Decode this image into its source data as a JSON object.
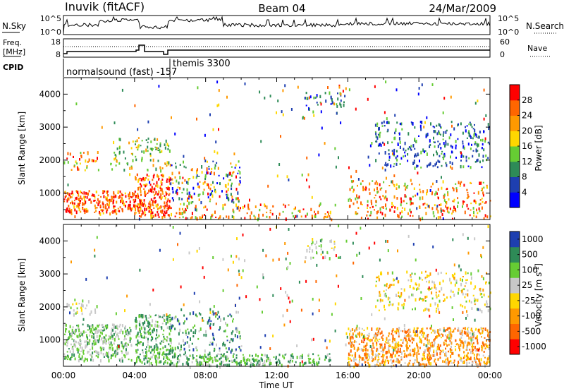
{
  "header": {
    "title": "Inuvik (fitACF)",
    "beam": "Beam 04",
    "date": "24/Mar/2009"
  },
  "top_panels": {
    "nsky_label": "N.Sky",
    "nsky_ticks": [
      "10^5",
      "10^0"
    ],
    "nsearch_label": "N.Search",
    "nsearch_ticks": [
      "10^5",
      "10^0"
    ],
    "freq_label_1": "Freq.",
    "freq_label_2": "[MHz]",
    "freq_ticks": [
      "18",
      "8"
    ],
    "nave_label": "Nave",
    "nave_ticks": [
      "60",
      "0"
    ],
    "cpid_label": "CPID",
    "cpid_entries": [
      {
        "text": "normalsound (fast) -157",
        "start_hour": 0
      },
      {
        "text": "themis 3300",
        "start_hour": 6
      }
    ]
  },
  "chart_data": [
    {
      "type": "heatmap",
      "panel": "power",
      "ylabel": "Slant Range [km]",
      "xlabel": "",
      "x_range_hours": [
        0,
        24
      ],
      "ylim": [
        200,
        4500
      ],
      "yticks": [
        1000,
        2000,
        3000,
        4000
      ],
      "colorbar": {
        "label": "Power [dB]",
        "ticks": [
          "4",
          "8",
          "12",
          "16",
          "20",
          "24",
          "28"
        ],
        "colors": [
          "#0000ff",
          "#1e3fb0",
          "#2e8b57",
          "#66cc33",
          "#ffd700",
          "#ff9900",
          "#ff6600",
          "#ff0000"
        ]
      },
      "scatter_regions": [
        {
          "start_hour": 0.0,
          "end_hour": 4.1,
          "range_km": [
            400,
            1100
          ],
          "dominant": "red"
        },
        {
          "start_hour": 0.0,
          "end_hour": 2.0,
          "range_km": [
            1700,
            2300
          ],
          "dominant": "red-orange"
        },
        {
          "start_hour": 2.5,
          "end_hour": 6.0,
          "range_km": [
            1700,
            2700
          ],
          "dominant": "green-yellow"
        },
        {
          "start_hour": 4.0,
          "end_hour": 6.0,
          "range_km": [
            300,
            1600
          ],
          "dominant": "red"
        },
        {
          "start_hour": 6.0,
          "end_hour": 10.0,
          "range_km": [
            700,
            2000
          ],
          "dominant": "mixed"
        },
        {
          "start_hour": 6.0,
          "end_hour": 15.3,
          "range_km": [
            250,
            700
          ],
          "dominant": "red-orange"
        },
        {
          "start_hour": 13.5,
          "end_hour": 15.8,
          "range_km": [
            3500,
            4100
          ],
          "dominant": "blue-green"
        },
        {
          "start_hour": 16.0,
          "end_hour": 24.0,
          "range_km": [
            250,
            1400
          ],
          "dominant": "red-orange"
        },
        {
          "start_hour": 17.5,
          "end_hour": 24.0,
          "range_km": [
            1800,
            3200
          ],
          "dominant": "green-blue"
        }
      ]
    },
    {
      "type": "heatmap",
      "panel": "velocity",
      "ylabel": "Slant Range [km]",
      "xlabel": "Time UT",
      "x_range_hours": [
        0,
        24
      ],
      "ylim": [
        200,
        4500
      ],
      "yticks": [
        1000,
        2000,
        3000,
        4000
      ],
      "xtick_labels": [
        "00:00",
        "04:00",
        "08:00",
        "12:00",
        "16:00",
        "20:00",
        "00:00"
      ],
      "colorbar": {
        "label": "Velocity [m s-1]",
        "ticks": [
          "1000",
          "500",
          "100",
          "25",
          "-25",
          "-100",
          "-500",
          "-1000"
        ],
        "colors": [
          "#1e3fb0",
          "#2e8b57",
          "#66cc33",
          "#c8c8c8",
          "#ffd700",
          "#ff9900",
          "#ff6600",
          "#ff0000"
        ]
      },
      "scatter_regions": [
        {
          "start_hour": 0.0,
          "end_hour": 3.8,
          "range_km": [
            400,
            1500
          ],
          "dominant": "grey-green"
        },
        {
          "start_hour": 0.0,
          "end_hour": 2.0,
          "range_km": [
            1800,
            2300
          ],
          "dominant": "grey"
        },
        {
          "start_hour": 4.0,
          "end_hour": 6.0,
          "range_km": [
            300,
            1800
          ],
          "dominant": "green"
        },
        {
          "start_hour": 6.0,
          "end_hour": 10.0,
          "range_km": [
            600,
            1900
          ],
          "dominant": "green-blue"
        },
        {
          "start_hour": 6.0,
          "end_hour": 15.0,
          "range_km": [
            250,
            600
          ],
          "dominant": "green"
        },
        {
          "start_hour": 13.5,
          "end_hour": 15.5,
          "range_km": [
            3500,
            4100
          ],
          "dominant": "grey"
        },
        {
          "start_hour": 16.0,
          "end_hour": 24.0,
          "range_km": [
            250,
            1400
          ],
          "dominant": "orange"
        },
        {
          "start_hour": 17.5,
          "end_hour": 24.0,
          "range_km": [
            1900,
            3100
          ],
          "dominant": "yellow-grey"
        }
      ]
    }
  ]
}
